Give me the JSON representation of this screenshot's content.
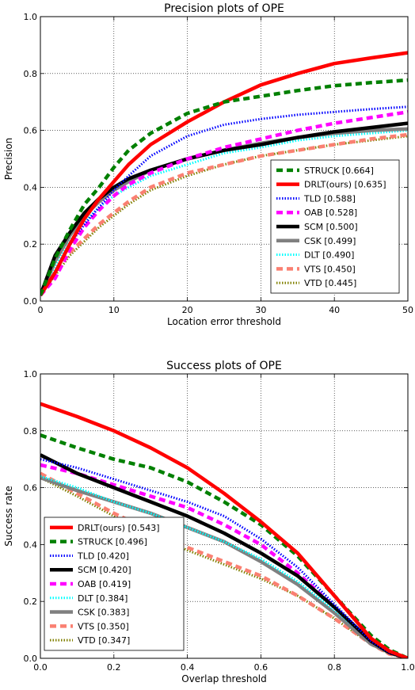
{
  "chart_data": [
    {
      "type": "line",
      "title": "Precision plots of OPE",
      "xlabel": "Location error threshold",
      "ylabel": "Precision",
      "xlim": [
        0,
        50
      ],
      "ylim": [
        0,
        1
      ],
      "xticks": [
        "0",
        "10",
        "20",
        "30",
        "40",
        "50"
      ],
      "yticks": [
        "0.0",
        "0.2",
        "0.4",
        "0.6",
        "0.8",
        "1.0"
      ],
      "grid": true,
      "legend_position": "lower-right",
      "x": [
        0,
        2,
        4,
        6,
        8,
        10,
        12,
        15,
        20,
        25,
        30,
        35,
        40,
        45,
        50
      ],
      "series": [
        {
          "name": "STRUCK [0.664]",
          "color": "#008000",
          "dash": "8,5",
          "width": 4.5,
          "values": [
            0.02,
            0.15,
            0.25,
            0.34,
            0.4,
            0.47,
            0.53,
            0.59,
            0.66,
            0.7,
            0.72,
            0.74,
            0.757,
            0.768,
            0.777
          ]
        },
        {
          "name": "DRLT(ours) [0.635]",
          "color": "#ff0000",
          "dash": "",
          "width": 4.5,
          "values": [
            0.02,
            0.1,
            0.2,
            0.29,
            0.36,
            0.42,
            0.48,
            0.55,
            0.63,
            0.7,
            0.76,
            0.8,
            0.835,
            0.855,
            0.873
          ]
        },
        {
          "name": "TLD [0.588]",
          "color": "#0000ff",
          "dash": "1.5,2",
          "width": 3,
          "values": [
            0.02,
            0.1,
            0.2,
            0.27,
            0.33,
            0.39,
            0.44,
            0.51,
            0.58,
            0.62,
            0.64,
            0.655,
            0.665,
            0.675,
            0.683
          ]
        },
        {
          "name": "OAB [0.528]",
          "color": "#ff00ff",
          "dash": "8,5",
          "width": 4.5,
          "values": [
            0.02,
            0.08,
            0.18,
            0.26,
            0.32,
            0.37,
            0.41,
            0.45,
            0.5,
            0.54,
            0.57,
            0.6,
            0.625,
            0.645,
            0.665
          ]
        },
        {
          "name": "SCM [0.500]",
          "color": "#000000",
          "dash": "",
          "width": 4.5,
          "values": [
            0.02,
            0.16,
            0.24,
            0.31,
            0.36,
            0.4,
            0.43,
            0.46,
            0.5,
            0.53,
            0.55,
            0.575,
            0.595,
            0.61,
            0.625
          ]
        },
        {
          "name": "CSK [0.499]",
          "color": "#808080",
          "dash": "",
          "width": 4.5,
          "values": [
            0.02,
            0.14,
            0.23,
            0.3,
            0.35,
            0.39,
            0.42,
            0.46,
            0.5,
            0.53,
            0.555,
            0.575,
            0.59,
            0.6,
            0.605
          ]
        },
        {
          "name": "DLT [0.490]",
          "color": "#00ffff",
          "dash": "1.5,2",
          "width": 3,
          "values": [
            0.02,
            0.12,
            0.21,
            0.28,
            0.33,
            0.37,
            0.4,
            0.44,
            0.48,
            0.52,
            0.54,
            0.565,
            0.58,
            0.59,
            0.6
          ]
        },
        {
          "name": "VTS [0.450]",
          "color": "#fa8072",
          "dash": "8,5",
          "width": 4.5,
          "values": [
            0.02,
            0.1,
            0.17,
            0.22,
            0.27,
            0.31,
            0.35,
            0.4,
            0.45,
            0.48,
            0.51,
            0.53,
            0.55,
            0.57,
            0.585
          ]
        },
        {
          "name": "VTD [0.445]",
          "color": "#808000",
          "dash": "1.5,2",
          "width": 3,
          "values": [
            0.02,
            0.09,
            0.16,
            0.21,
            0.26,
            0.3,
            0.34,
            0.39,
            0.44,
            0.48,
            0.51,
            0.53,
            0.55,
            0.565,
            0.58
          ]
        }
      ]
    },
    {
      "type": "line",
      "title": "Success plots of OPE",
      "xlabel": "Overlap threshold",
      "ylabel": "Success rate",
      "xlim": [
        0,
        1
      ],
      "ylim": [
        0,
        1
      ],
      "xticks": [
        "0.0",
        "0.2",
        "0.4",
        "0.6",
        "0.8",
        "1.0"
      ],
      "yticks": [
        "0.0",
        "0.2",
        "0.4",
        "0.6",
        "0.8",
        "1.0"
      ],
      "grid": true,
      "legend_position": "lower-left",
      "x": [
        0,
        0.1,
        0.2,
        0.3,
        0.4,
        0.5,
        0.6,
        0.7,
        0.8,
        0.9,
        0.95,
        1.0
      ],
      "series": [
        {
          "name": "DRLT(ours) [0.543]",
          "color": "#ff0000",
          "dash": "",
          "width": 4.5,
          "values": [
            0.895,
            0.85,
            0.8,
            0.74,
            0.67,
            0.58,
            0.48,
            0.37,
            0.22,
            0.07,
            0.025,
            0.0
          ]
        },
        {
          "name": "STRUCK [0.496]",
          "color": "#008000",
          "dash": "8,5",
          "width": 4.5,
          "values": [
            0.785,
            0.74,
            0.7,
            0.67,
            0.62,
            0.55,
            0.47,
            0.36,
            0.22,
            0.08,
            0.03,
            0.0
          ]
        },
        {
          "name": "TLD [0.420]",
          "color": "#0000ff",
          "dash": "1.5,2",
          "width": 3,
          "values": [
            0.7,
            0.67,
            0.63,
            0.59,
            0.55,
            0.5,
            0.42,
            0.32,
            0.19,
            0.06,
            0.02,
            0.0
          ]
        },
        {
          "name": "SCM [0.420]",
          "color": "#000000",
          "dash": "",
          "width": 4.5,
          "values": [
            0.715,
            0.65,
            0.6,
            0.55,
            0.5,
            0.44,
            0.37,
            0.29,
            0.18,
            0.06,
            0.02,
            0.0
          ]
        },
        {
          "name": "OAB [0.419]",
          "color": "#ff00ff",
          "dash": "8,5",
          "width": 4.5,
          "values": [
            0.68,
            0.65,
            0.61,
            0.57,
            0.53,
            0.47,
            0.4,
            0.3,
            0.18,
            0.06,
            0.02,
            0.0
          ]
        },
        {
          "name": "DLT [0.384]",
          "color": "#00ffff",
          "dash": "1.5,2",
          "width": 3,
          "values": [
            0.64,
            0.6,
            0.55,
            0.51,
            0.46,
            0.41,
            0.35,
            0.27,
            0.17,
            0.06,
            0.02,
            0.0
          ]
        },
        {
          "name": "CSK [0.383]",
          "color": "#808080",
          "dash": "",
          "width": 4.5,
          "values": [
            0.635,
            0.59,
            0.55,
            0.51,
            0.46,
            0.41,
            0.34,
            0.26,
            0.16,
            0.05,
            0.02,
            0.0
          ]
        },
        {
          "name": "VTS [0.350]",
          "color": "#fa8072",
          "dash": "8,5",
          "width": 4.5,
          "values": [
            0.65,
            0.58,
            0.51,
            0.45,
            0.39,
            0.34,
            0.29,
            0.22,
            0.14,
            0.05,
            0.015,
            0.0
          ]
        },
        {
          "name": "VTD [0.347]",
          "color": "#808000",
          "dash": "1.5,2",
          "width": 3,
          "values": [
            0.635,
            0.57,
            0.5,
            0.44,
            0.38,
            0.33,
            0.28,
            0.22,
            0.14,
            0.05,
            0.015,
            0.0
          ]
        }
      ]
    }
  ]
}
